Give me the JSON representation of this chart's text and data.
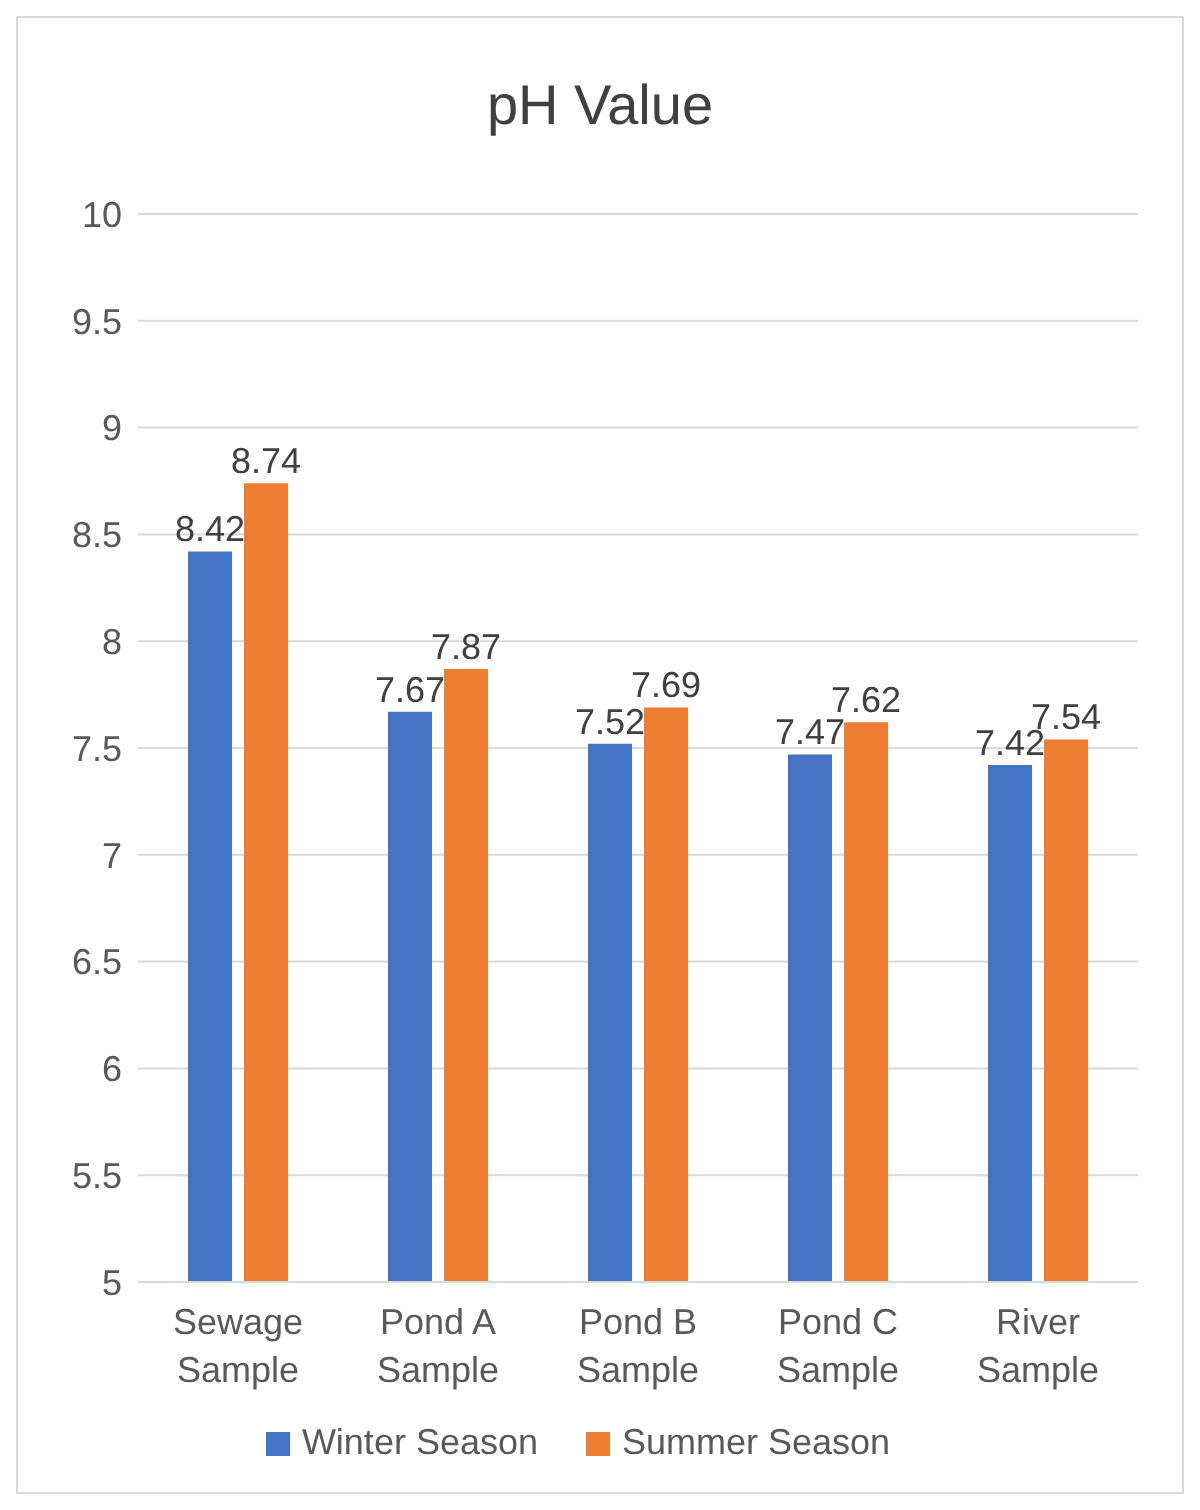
{
  "chart_data": {
    "type": "bar",
    "title": "pH Value",
    "categories": [
      "Sewage Sample",
      "Pond A Sample",
      "Pond B Sample",
      "Pond C Sample",
      "River Sample"
    ],
    "series": [
      {
        "name": "Winter Season",
        "color": "#4472c4",
        "values": [
          8.42,
          7.67,
          7.52,
          7.47,
          7.42
        ]
      },
      {
        "name": "Summer Season",
        "color": "#ed7d31",
        "values": [
          8.74,
          7.87,
          7.69,
          7.62,
          7.54
        ]
      }
    ],
    "ylim": [
      5,
      10
    ],
    "yticks": [
      5,
      5.5,
      6,
      6.5,
      7,
      7.5,
      8,
      8.5,
      9,
      9.5,
      10
    ],
    "grid": "y",
    "legend": "bottom",
    "data_labels": true
  }
}
